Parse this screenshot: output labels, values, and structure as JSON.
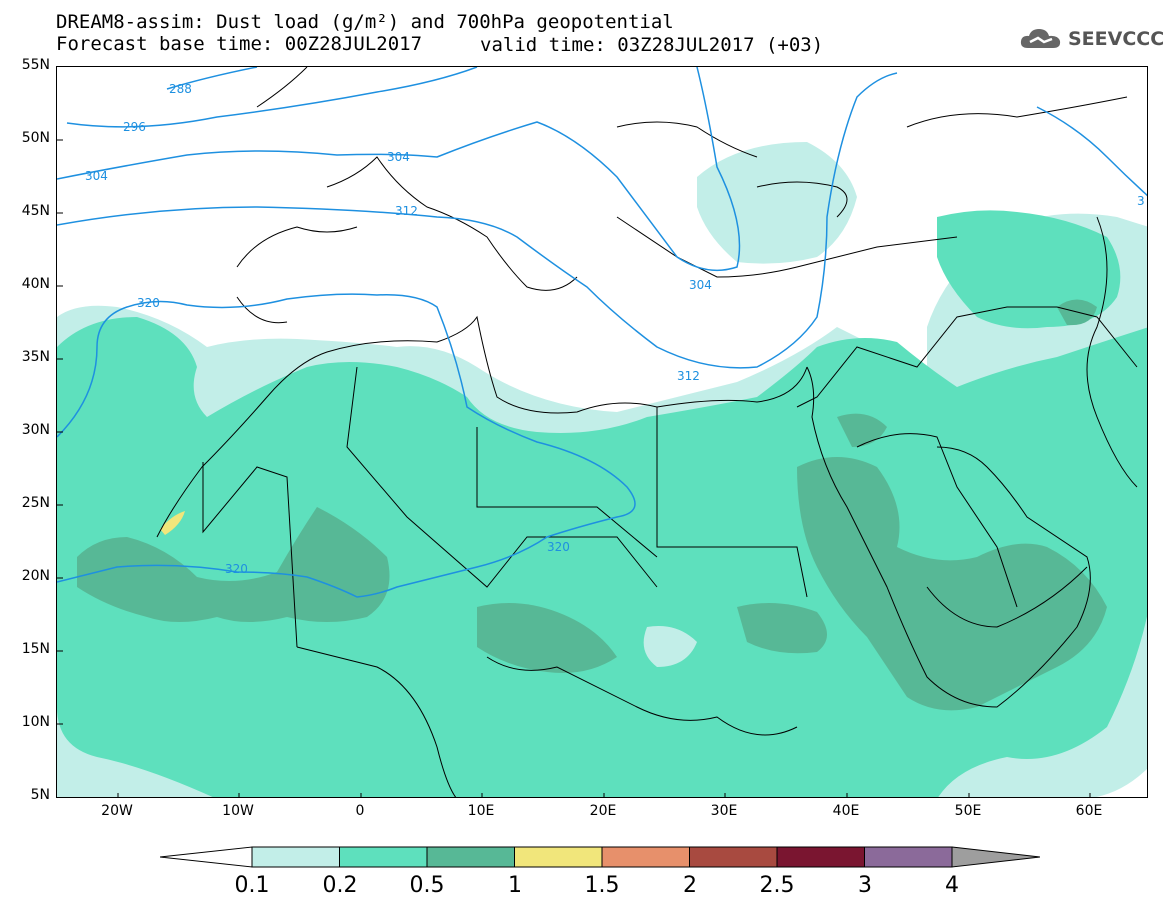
{
  "title": {
    "line1": "DREAM8-assim: Dust load (g/m²) and 700hPa geopotential",
    "line2": "Forecast base time: 00Z28JUL2017",
    "line2b": "valid time: 03Z28JUL2017 (+03)"
  },
  "logo": {
    "text": "SEEVCCC",
    "icon": "cloud-icon"
  },
  "axes": {
    "lat_labels": [
      "55N",
      "50N",
      "45N",
      "40N",
      "35N",
      "30N",
      "25N",
      "20N",
      "15N",
      "10N",
      "5N"
    ],
    "lon_labels": [
      "20W",
      "10W",
      "0",
      "10E",
      "20E",
      "30E",
      "40E",
      "50E",
      "60E"
    ]
  },
  "contour_labels": [
    "288",
    "296",
    "304",
    "304",
    "312",
    "320",
    "304",
    "312",
    "320",
    "320",
    "3"
  ],
  "colorbar": {
    "labels": [
      "0.1",
      "0.2",
      "0.5",
      "1",
      "1.5",
      "2",
      "2.5",
      "3",
      "4"
    ],
    "colors": [
      "#c2eee8",
      "#5ee0bd",
      "#57b896",
      "#f1e67b",
      "#e7906b",
      "#a84a40",
      "#7a1530",
      "#8b6a9a"
    ],
    "under_color": "#ffffff",
    "over_color": "#9e9e9e"
  },
  "colors": {
    "contour": "#1e90e0",
    "dust_low": "#c2eee8",
    "dust_mid": "#5ee0bd",
    "dust_high": "#57b896",
    "dust_peak": "#f1e67b"
  }
}
